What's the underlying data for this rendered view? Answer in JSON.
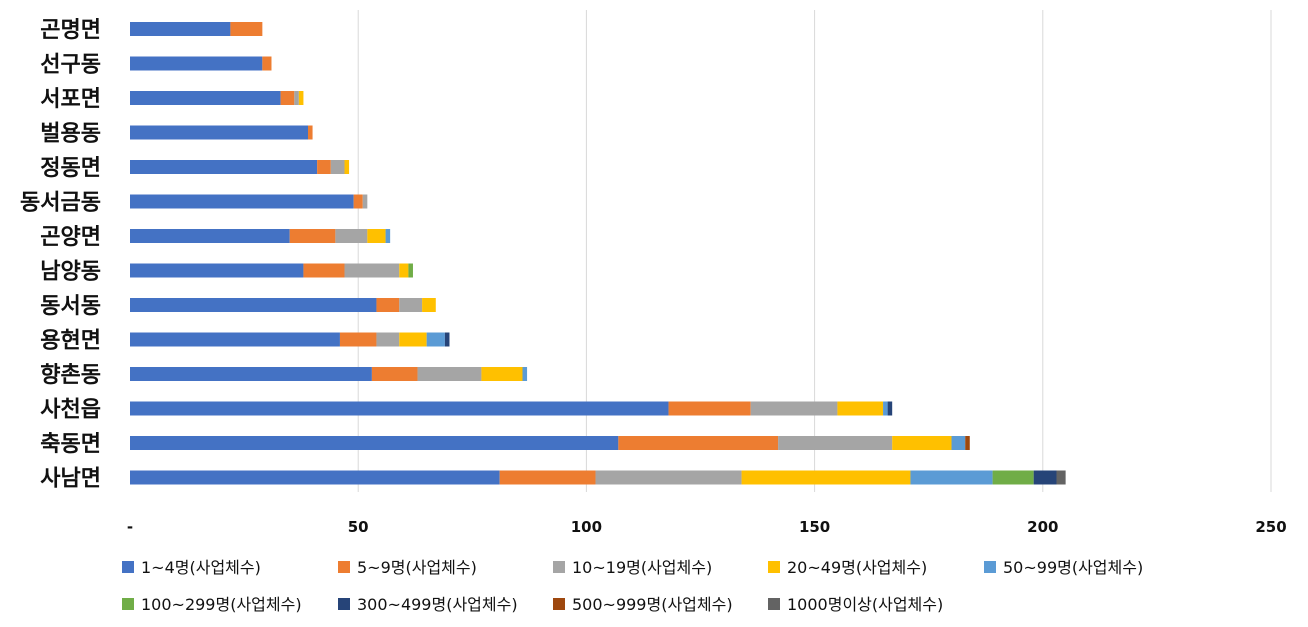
{
  "chart_data": {
    "type": "bar",
    "orientation": "horizontal",
    "stacked": true,
    "title": "",
    "xlabel": "",
    "ylabel": "",
    "xlim": [
      0,
      250
    ],
    "grid": true,
    "legend_position": "bottom",
    "x_ticks": [
      {
        "value": 0,
        "label": "-"
      },
      {
        "value": 50,
        "label": "50"
      },
      {
        "value": 100,
        "label": "100"
      },
      {
        "value": 150,
        "label": "150"
      },
      {
        "value": 200,
        "label": "200"
      },
      {
        "value": 250,
        "label": "250"
      }
    ],
    "categories": [
      "곤명면",
      "선구동",
      "서포면",
      "벌용동",
      "정동면",
      "동서금동",
      "곤양면",
      "남양동",
      "동서동",
      "용현면",
      "향촌동",
      "사천읍",
      "축동면",
      "사남면"
    ],
    "series": [
      {
        "name": "1~4명(사업체수)",
        "color": "#4472C4",
        "values": [
          22,
          29,
          33,
          39,
          41,
          49,
          35,
          38,
          54,
          46,
          53,
          118,
          107,
          81
        ]
      },
      {
        "name": "5~9명(사업체수)",
        "color": "#ED7D31",
        "values": [
          7,
          2,
          3,
          1,
          3,
          2,
          10,
          9,
          5,
          8,
          10,
          18,
          35,
          21
        ]
      },
      {
        "name": "10~19명(사업체수)",
        "color": "#A5A5A5",
        "values": [
          0,
          0,
          1,
          0,
          3,
          1,
          7,
          12,
          5,
          5,
          14,
          19,
          25,
          32
        ]
      },
      {
        "name": "20~49명(사업체수)",
        "color": "#FFC000",
        "values": [
          0,
          0,
          1,
          0,
          1,
          0,
          4,
          2,
          3,
          6,
          9,
          10,
          13,
          37
        ]
      },
      {
        "name": "50~99명(사업체수)",
        "color": "#5B9BD5",
        "values": [
          0,
          0,
          0,
          0,
          0,
          0,
          1,
          0,
          0,
          4,
          1,
          1,
          3,
          18
        ]
      },
      {
        "name": "100~299명(사업체수)",
        "color": "#70AD47",
        "values": [
          0,
          0,
          0,
          0,
          0,
          0,
          0,
          1,
          0,
          0,
          0,
          0,
          0,
          9
        ]
      },
      {
        "name": "300~499명(사업체수)",
        "color": "#264478",
        "values": [
          0,
          0,
          0,
          0,
          0,
          0,
          0,
          0,
          0,
          1,
          0,
          1,
          0,
          5
        ]
      },
      {
        "name": "500~999명(사업체수)",
        "color": "#9E480E",
        "values": [
          0,
          0,
          0,
          0,
          0,
          0,
          0,
          0,
          0,
          0,
          0,
          0,
          1,
          0
        ]
      },
      {
        "name": "1000명이상(사업체수)",
        "color": "#636363",
        "values": [
          0,
          0,
          0,
          0,
          0,
          0,
          0,
          0,
          0,
          0,
          0,
          0,
          0,
          2
        ]
      }
    ]
  }
}
